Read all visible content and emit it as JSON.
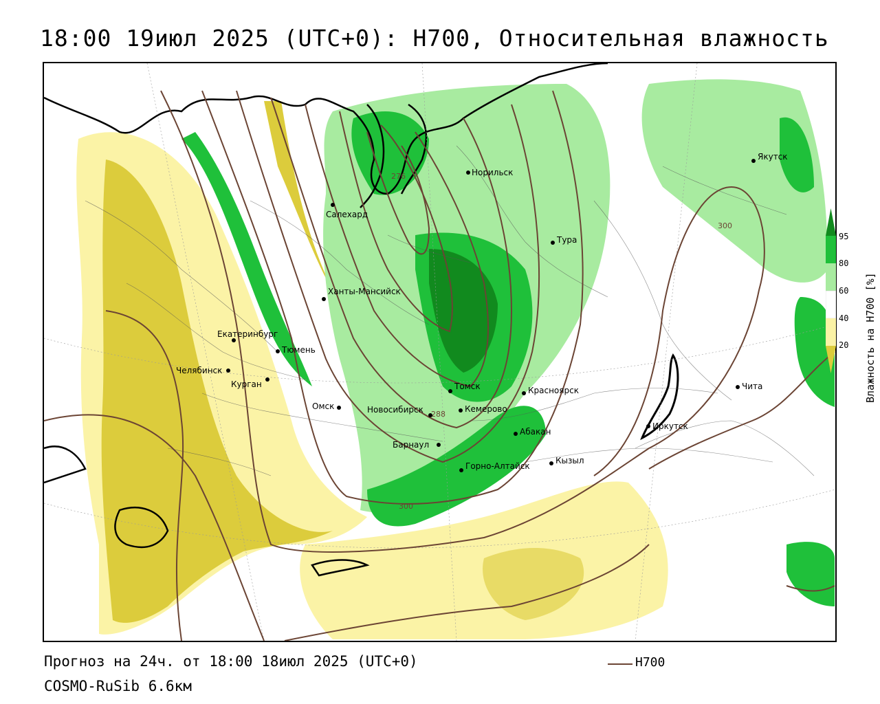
{
  "title": "18:00 19июл 2025 (UTC+0): H700, Относительная влажность",
  "footer": {
    "forecast": "Прогноз на 24ч. от 18:00 18июл 2025 (UTC+0)",
    "model": "COSMO-RuSib 6.6км"
  },
  "legend": {
    "line_label": "H700",
    "line_color": "#6b4434"
  },
  "colorbar": {
    "title": "Влажность на H700 [%]",
    "ticks": [
      "95",
      "80",
      "60",
      "40",
      "20"
    ],
    "colors": {
      "gt95": "#118a1e",
      "80_95": "#1fc03a",
      "60_80": "#a8eba0",
      "40_60": "#ffffff",
      "20_40": "#fbf3a6",
      "lt20": "#dccc3c"
    }
  },
  "cities": [
    {
      "name": "Салехард"
    },
    {
      "name": "Норильск"
    },
    {
      "name": "Якутск"
    },
    {
      "name": "Тура"
    },
    {
      "name": "Ханты-Мансийск"
    },
    {
      "name": "Екатеринбург"
    },
    {
      "name": "Тюмень"
    },
    {
      "name": "Челябинск"
    },
    {
      "name": "Курган"
    },
    {
      "name": "Омск"
    },
    {
      "name": "Новосибирск"
    },
    {
      "name": "Томск"
    },
    {
      "name": "Кемерово"
    },
    {
      "name": "Красноярск"
    },
    {
      "name": "Барнаул"
    },
    {
      "name": "Абакан"
    },
    {
      "name": "Горно-Алтайск"
    },
    {
      "name": "Кызыл"
    },
    {
      "name": "Иркутск"
    },
    {
      "name": "Чита"
    }
  ],
  "isoline_labels": [
    "276",
    "288",
    "300",
    "300"
  ]
}
